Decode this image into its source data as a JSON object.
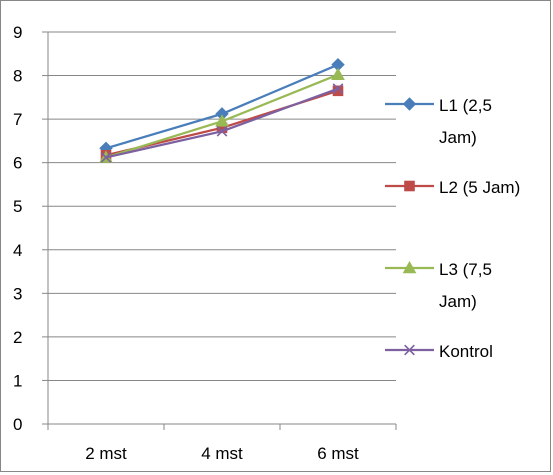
{
  "chart_data": {
    "type": "line",
    "title": "",
    "xlabel": "",
    "ylabel": "",
    "categories": [
      "2 mst",
      "4 mst",
      "6 mst"
    ],
    "ylim": [
      0,
      9
    ],
    "yticks": [
      0,
      1,
      2,
      3,
      4,
      5,
      6,
      7,
      8,
      9
    ],
    "grid": "horizontal",
    "legend_position": "right",
    "series": [
      {
        "name": "L1 (2,5 Jam)",
        "name_lines": [
          "L1 (2,5",
          "Jam)"
        ],
        "values": [
          6.33,
          7.12,
          8.25
        ],
        "color": "#4a7ebb",
        "marker": "diamond"
      },
      {
        "name": "L2 (5 Jam)",
        "name_lines": [
          "L2 (5 Jam)"
        ],
        "values": [
          6.17,
          6.8,
          7.65
        ],
        "color": "#be4b48",
        "marker": "square"
      },
      {
        "name": "L3 (7,5 Jam)",
        "name_lines": [
          "L3 (7,5",
          "Jam)"
        ],
        "values": [
          6.12,
          6.95,
          8.02
        ],
        "color": "#98b954",
        "marker": "triangle"
      },
      {
        "name": "Kontrol",
        "name_lines": [
          "Kontrol"
        ],
        "values": [
          6.12,
          6.72,
          7.7
        ],
        "color": "#7d60a0",
        "marker": "x"
      }
    ]
  }
}
